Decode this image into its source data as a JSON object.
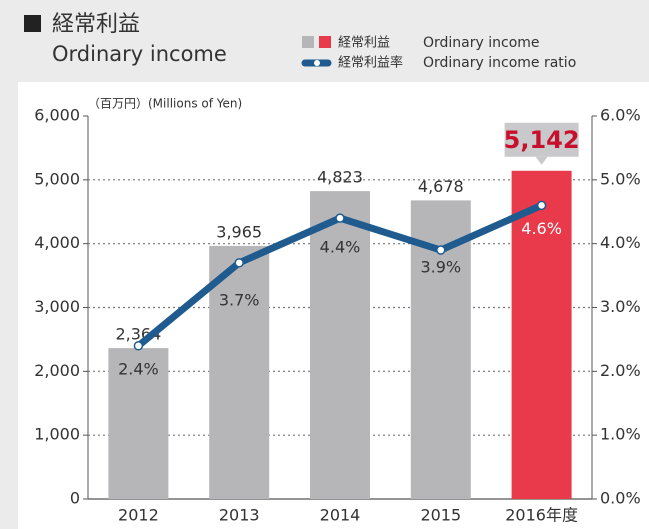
{
  "chart_data": {
    "type": "bar",
    "title": "経常利益",
    "subtitle": "Ordinary income",
    "unit_label": "（百万円）(Millions of Yen)",
    "categories": [
      "2012",
      "2013",
      "2014",
      "2015",
      "2016年度"
    ],
    "series": [
      {
        "name": "経常利益",
        "name_en": "Ordinary income",
        "type": "bar",
        "colors": [
          "#b6b6b9",
          "#b6b6b9",
          "#b6b6b9",
          "#b6b6b9",
          "#e83a4a"
        ],
        "values": [
          2364,
          3965,
          4823,
          4678,
          5142
        ],
        "value_labels": [
          "2,364",
          "3,965",
          "4,823",
          "4,678",
          "5,142"
        ]
      },
      {
        "name": "経常利益率",
        "name_en": "Ordinary income ratio",
        "type": "line",
        "axis": "y2",
        "color": "#1f5b8f",
        "values": [
          2.4,
          3.7,
          4.4,
          3.9,
          4.6
        ],
        "value_labels": [
          "2.4%",
          "3.7%",
          "4.4%",
          "3.9%",
          "4.6%"
        ]
      }
    ],
    "ylim": [
      0,
      6000
    ],
    "yticks": [
      0,
      {
        "value": 1000,
        "label": "1,000"
      },
      {
        "value": 2000,
        "label": "2,000"
      },
      {
        "value": 3000,
        "label": "3,000"
      },
      {
        "value": 4000,
        "label": "4,000"
      },
      {
        "value": 5000,
        "label": "5,000"
      },
      {
        "value": 6000,
        "label": "6,000"
      }
    ],
    "y2lim": [
      0,
      6
    ],
    "y2ticks": [
      {
        "value": 0,
        "label": "0.0%"
      },
      {
        "value": 1,
        "label": "1.0%"
      },
      {
        "value": 2,
        "label": "2.0%"
      },
      {
        "value": 3,
        "label": "3.0%"
      },
      {
        "value": 4,
        "label": "4.0%"
      },
      {
        "value": 5,
        "label": "5.0%"
      },
      {
        "value": 6,
        "label": "6.0%"
      }
    ],
    "grid": true
  }
}
